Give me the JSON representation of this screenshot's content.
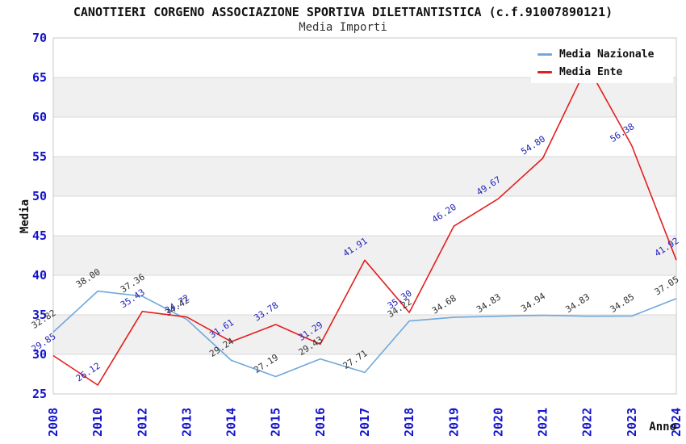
{
  "header": {
    "title": "CANOTTIERI CORGENO ASSOCIAZIONE SPORTIVA DILETTANTISTICA (c.f.91007890121)",
    "subtitle": "Media Importi"
  },
  "chart_data": {
    "type": "line",
    "title": "CANOTTIERI CORGENO ASSOCIAZIONE SPORTIVA DILETTANTISTICA (c.f.91007890121)",
    "subtitle": "Media Importi",
    "xlabel": "Anno",
    "ylabel": "Media",
    "ylim": [
      25,
      70
    ],
    "ytick_step": 5,
    "yticks": [
      25,
      30,
      35,
      40,
      45,
      50,
      55,
      60,
      65,
      70
    ],
    "categories": [
      "2008",
      "2010",
      "2012",
      "2013",
      "2014",
      "2015",
      "2016",
      "2017",
      "2018",
      "2019",
      "2020",
      "2021",
      "2022",
      "2023",
      "2024"
    ],
    "series": [
      {
        "name": "Media Nazionale",
        "color": "#6fa8dc",
        "label_color": "#303030",
        "values": [
          32.82,
          38.0,
          37.36,
          34.42,
          29.24,
          27.19,
          29.43,
          27.71,
          34.22,
          34.68,
          34.83,
          34.94,
          34.83,
          34.85,
          37.05
        ],
        "labels": [
          "32.82",
          "38.00",
          "37.36",
          "34.42",
          "29.24",
          "27.19",
          "29.43",
          "27.71",
          "34.22",
          "34.68",
          "34.83",
          "34.94",
          "34.83",
          "34.85",
          "37.05"
        ]
      },
      {
        "name": "Media Ente",
        "color": "#e41e1e",
        "label_color": "#2222bb",
        "values": [
          29.85,
          26.12,
          35.43,
          34.72,
          31.61,
          33.78,
          31.29,
          41.91,
          35.3,
          46.2,
          49.67,
          54.8,
          66.5,
          56.38,
          41.92
        ],
        "labels": [
          "29.85",
          "26.12",
          "35.43",
          "34.72",
          "31.61",
          "33.78",
          "31.29",
          "41.91",
          "35.30",
          "46.20",
          "49.67",
          "54.80",
          "",
          "56.38",
          "41.92"
        ]
      }
    ],
    "legend": {
      "position": "top-right",
      "items": [
        "Media Nazionale",
        "Media Ente"
      ]
    },
    "grid": {
      "bands": [
        [
          30,
          35
        ],
        [
          40,
          45
        ],
        [
          50,
          55
        ],
        [
          60,
          65
        ]
      ],
      "band_color": "#f0f0f0",
      "line_color": "#d8d8d8",
      "border_color": "#c8c8c8"
    },
    "axis": {
      "tick_color": "#1414cc",
      "title_color": "#111111"
    }
  }
}
